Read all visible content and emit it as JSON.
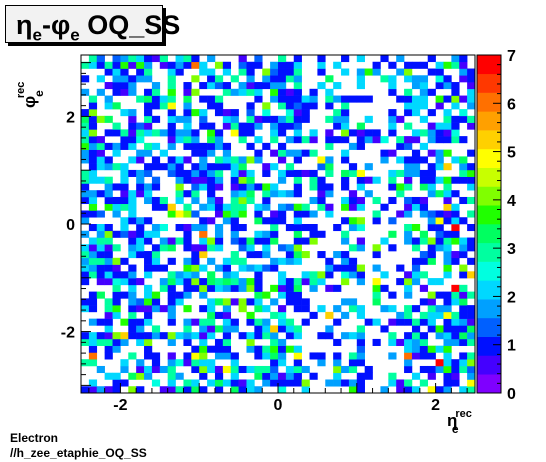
{
  "chart_data": {
    "type": "heatmap",
    "title_parts": {
      "eta": "η",
      "e1": "e",
      "dash": "-",
      "phi": "φ",
      "e2": "e",
      "rest": " OQ_SS"
    },
    "x_axis": {
      "symbol": "η",
      "superscript": "rec",
      "subscript": "e",
      "range": [
        -2.5,
        2.5
      ],
      "ticks": [
        -2,
        0,
        2
      ],
      "tick_labels": [
        "-2",
        "0",
        "2"
      ]
    },
    "y_axis": {
      "symbol": "φ",
      "superscript": "rec",
      "subscript": "e",
      "range": [
        -3.1416,
        3.1416
      ],
      "ticks": [
        -2,
        0,
        2
      ],
      "tick_labels": [
        "-2",
        "0",
        "2"
      ]
    },
    "z_axis": {
      "range": [
        0,
        7
      ],
      "ticks": [
        0,
        1,
        2,
        3,
        4,
        5,
        6,
        7
      ],
      "tick_labels": [
        "0",
        "1",
        "2",
        "3",
        "4",
        "5",
        "6",
        "7"
      ]
    },
    "bins": {
      "nx": 50,
      "ny": 50
    },
    "palette": [
      "#7f00ff",
      "#4400ff",
      "#0010ff",
      "#0060ff",
      "#00a0ff",
      "#00d8ff",
      "#00ffe0",
      "#00ffa0",
      "#00ff60",
      "#20ff00",
      "#80ff00",
      "#c8ff00",
      "#ffff00",
      "#ffd000",
      "#ffa000",
      "#ff7000",
      "#ff3800",
      "#ff0000"
    ],
    "hot_cells": [
      {
        "x": -2.35,
        "y": -2.4,
        "z": 6
      },
      {
        "x": -0.95,
        "y": -0.2,
        "z": 6
      },
      {
        "x": 1.65,
        "y": -2.4,
        "z": 6
      },
      {
        "x": 2.25,
        "y": -1.25,
        "z": 7
      },
      {
        "x": 2.25,
        "y": -0.05,
        "z": 7
      },
      {
        "x": -1.05,
        "y": 2.95,
        "z": 6
      },
      {
        "x": 2.05,
        "y": -2.6,
        "z": 7
      }
    ]
  },
  "footer": {
    "line1": "Electron",
    "line2": "//h_zee_etaphie_OQ_SS"
  }
}
